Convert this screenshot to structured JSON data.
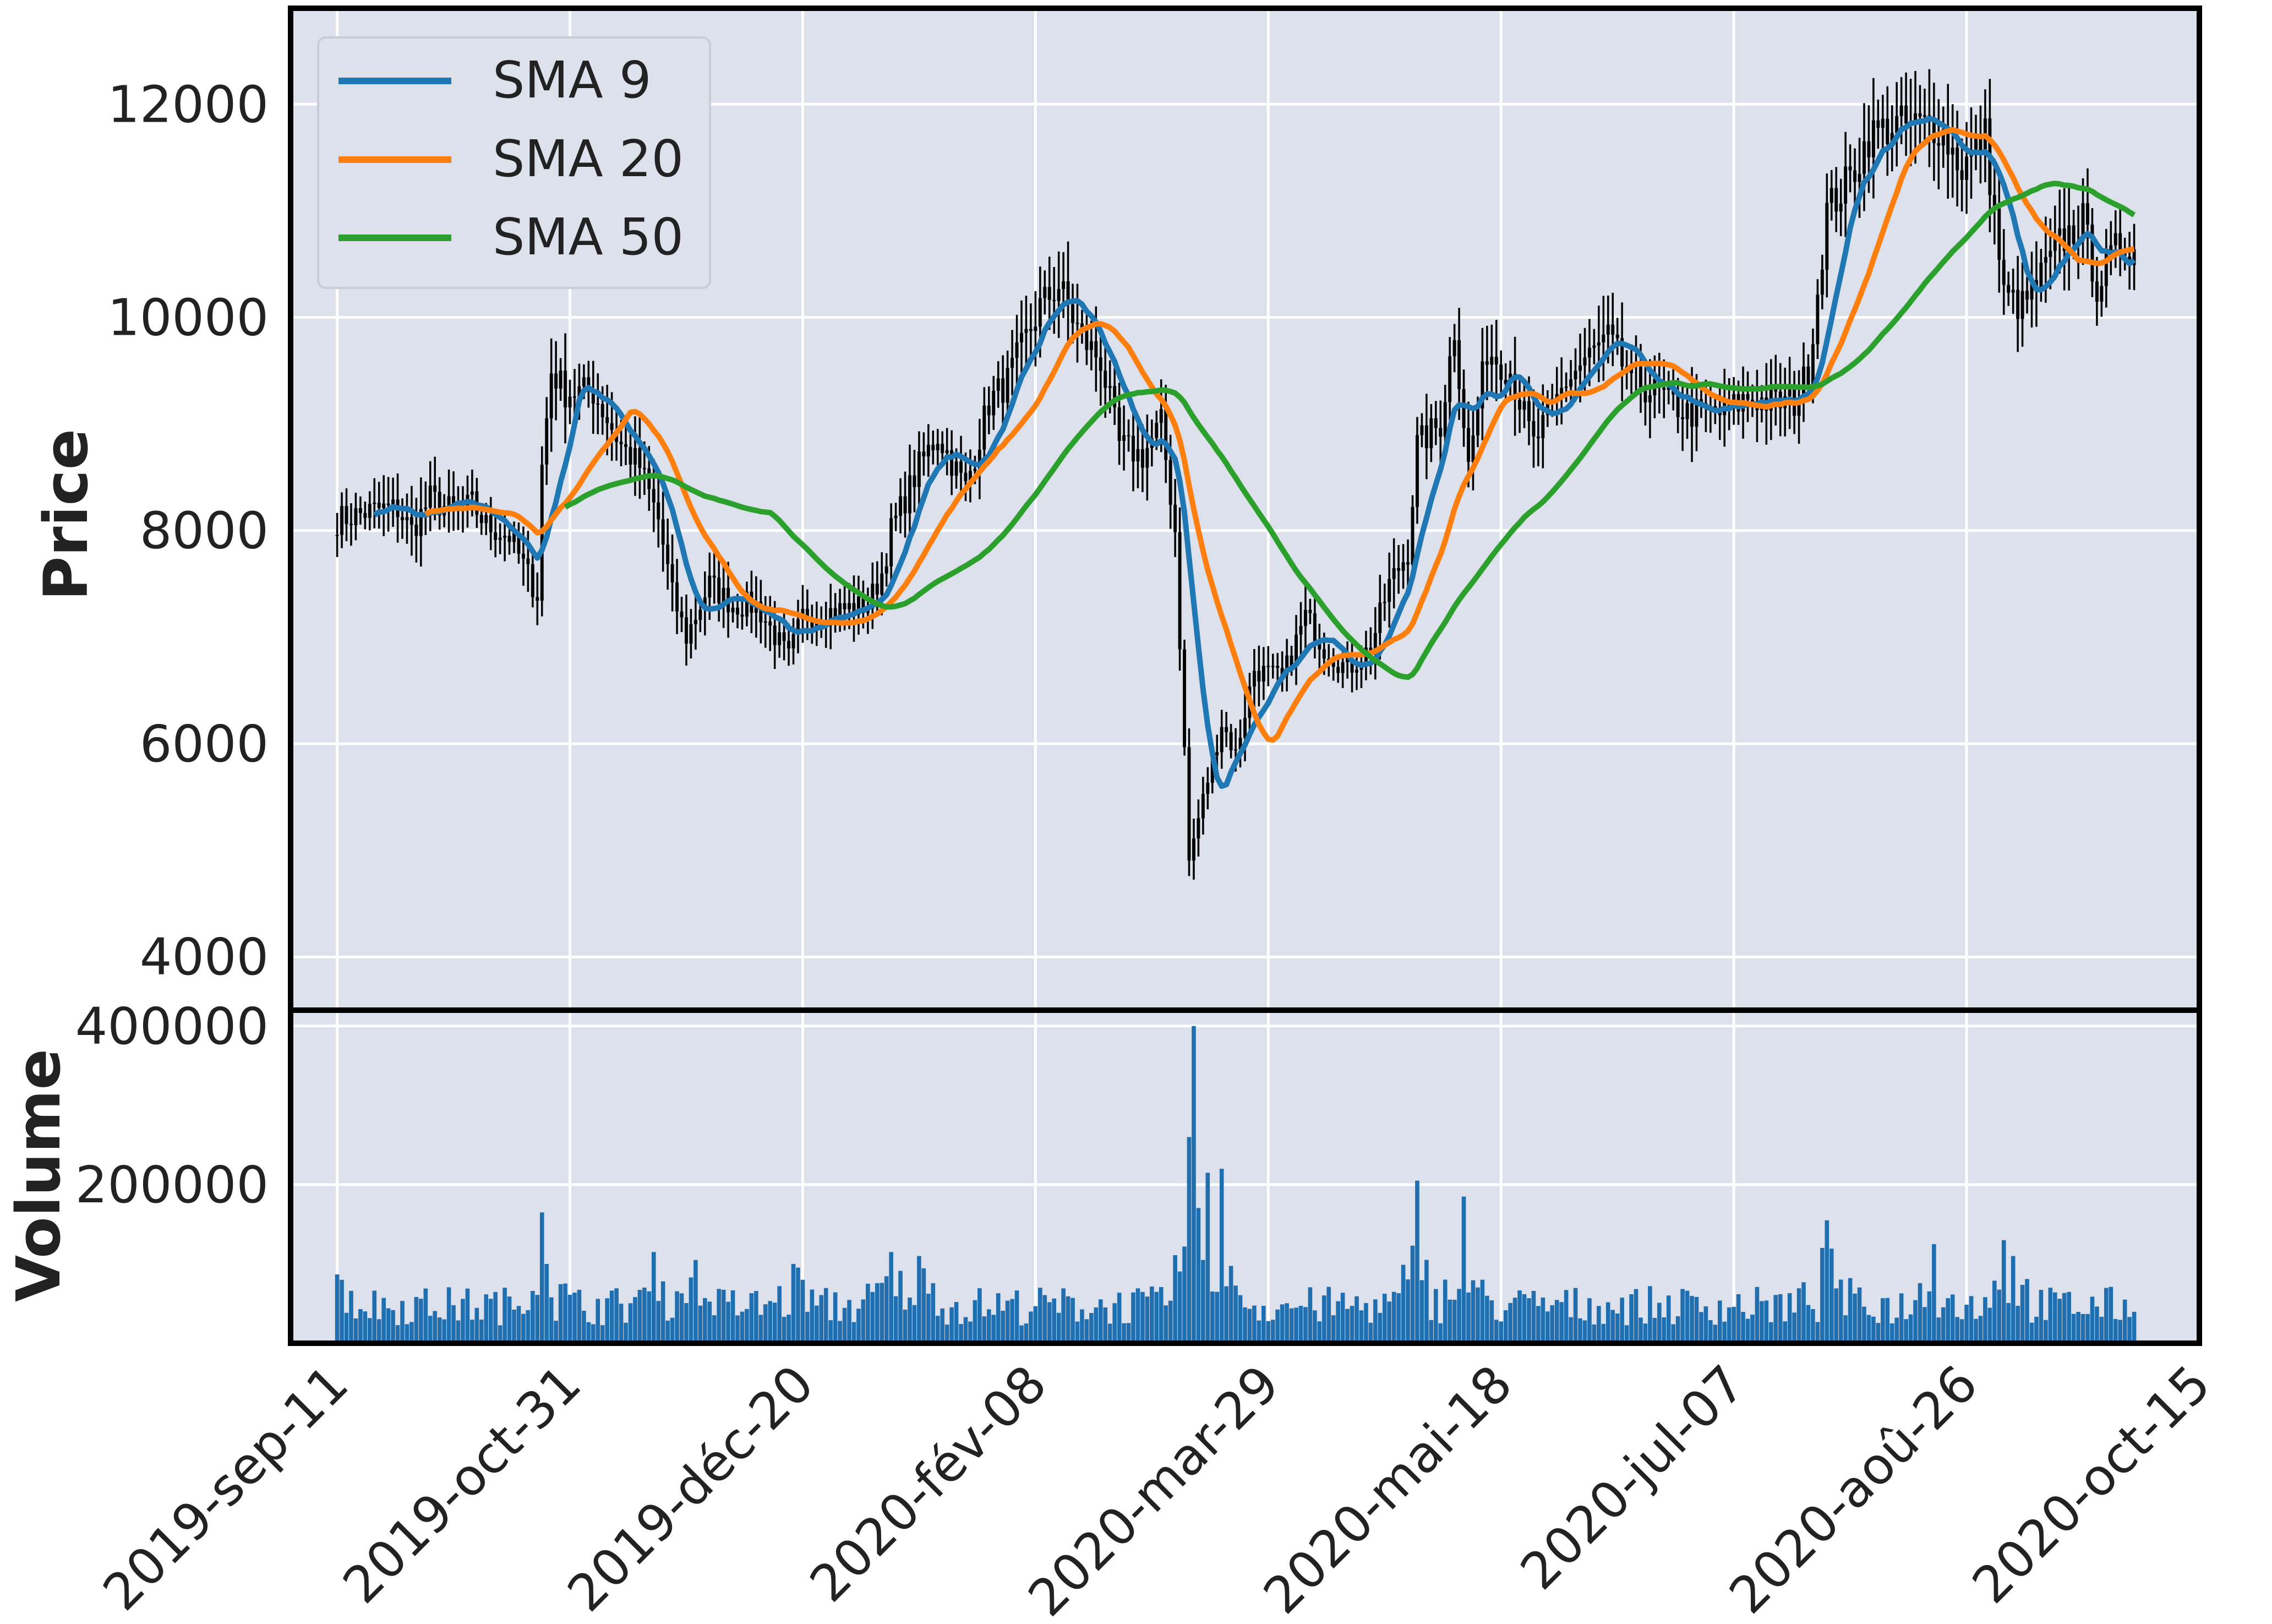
{
  "chart_data": {
    "type": "candlestick",
    "legend_position": "upper-left",
    "grid": true,
    "colors": {
      "background": "#dde1ec",
      "grid": "#ffffff",
      "candle": "#000000",
      "volume": "#1f6fb0",
      "sma9": "#1f77b4",
      "sma20": "#ff7f0e",
      "sma50": "#2ca02c"
    },
    "price_panel": {
      "ylabel": "Price",
      "ylim": [
        3500,
        12900
      ],
      "yticks": [
        4000,
        6000,
        8000,
        10000,
        12000
      ]
    },
    "volume_panel": {
      "ylabel": "Volume",
      "ylim": [
        0,
        420000
      ],
      "yticks": [
        200000,
        400000
      ]
    },
    "x_axis": {
      "range": [
        "2019-09-01",
        "2020-10-15"
      ],
      "ticks": [
        {
          "date": "2019-09-11",
          "label": "2019-sep-11"
        },
        {
          "date": "2019-10-31",
          "label": "2019-oct-31"
        },
        {
          "date": "2019-12-20",
          "label": "2019-déc-20"
        },
        {
          "date": "2020-02-08",
          "label": "2020-fév-08"
        },
        {
          "date": "2020-03-29",
          "label": "2020-mar-29"
        },
        {
          "date": "2020-05-18",
          "label": "2020-mai-18"
        },
        {
          "date": "2020-07-07",
          "label": "2020-jul-07"
        },
        {
          "date": "2020-08-26",
          "label": "2020-aoû-26"
        },
        {
          "date": "2020-10-15",
          "label": "2020-oct-15"
        }
      ]
    },
    "data_start": "2019-09-11",
    "data_end": "2020-10-01",
    "price_anchors": [
      [
        "2019-09-11",
        8100
      ],
      [
        "2019-09-20",
        8200
      ],
      [
        "2019-09-24",
        8200
      ],
      [
        "2019-09-27",
        8000
      ],
      [
        "2019-10-01",
        8300
      ],
      [
        "2019-10-07",
        8150
      ],
      [
        "2019-10-10",
        8250
      ],
      [
        "2019-10-13",
        8050
      ],
      [
        "2019-10-18",
        7950
      ],
      [
        "2019-10-24",
        7400
      ],
      [
        "2019-10-25",
        8600
      ],
      [
        "2019-10-27",
        9500
      ],
      [
        "2019-10-30",
        9300
      ],
      [
        "2019-11-05",
        9300
      ],
      [
        "2019-11-11",
        8800
      ],
      [
        "2019-11-15",
        8600
      ],
      [
        "2019-11-19",
        8100
      ],
      [
        "2019-11-22",
        7400
      ],
      [
        "2019-11-25",
        7000
      ],
      [
        "2019-11-30",
        7500
      ],
      [
        "2019-12-05",
        7300
      ],
      [
        "2019-12-10",
        7300
      ],
      [
        "2019-12-17",
        6800
      ],
      [
        "2019-12-20",
        7200
      ],
      [
        "2019-12-27",
        7250
      ],
      [
        "2020-01-03",
        7300
      ],
      [
        "2020-01-06",
        7600
      ],
      [
        "2020-01-08",
        8000
      ],
      [
        "2020-01-14",
        8600
      ],
      [
        "2020-01-18",
        8900
      ],
      [
        "2020-01-24",
        8400
      ],
      [
        "2020-01-29",
        9200
      ],
      [
        "2020-02-02",
        9400
      ],
      [
        "2020-02-09",
        10100
      ],
      [
        "2020-02-13",
        10300
      ],
      [
        "2020-02-18",
        9800
      ],
      [
        "2020-02-22",
        9600
      ],
      [
        "2020-02-26",
        8800
      ],
      [
        "2020-03-02",
        8700
      ],
      [
        "2020-03-06",
        9000
      ],
      [
        "2020-03-09",
        8000
      ],
      [
        "2020-03-12",
        4900
      ],
      [
        "2020-03-14",
        5300
      ],
      [
        "2020-03-19",
        6200
      ],
      [
        "2020-03-22",
        5900
      ],
      [
        "2020-03-26",
        6700
      ],
      [
        "2020-04-01",
        6600
      ],
      [
        "2020-04-06",
        7200
      ],
      [
        "2020-04-10",
        6900
      ],
      [
        "2020-04-15",
        6700
      ],
      [
        "2020-04-20",
        6900
      ],
      [
        "2020-04-24",
        7500
      ],
      [
        "2020-04-28",
        7800
      ],
      [
        "2020-04-30",
        8800
      ],
      [
        "2020-05-05",
        9000
      ],
      [
        "2020-05-08",
        9900
      ],
      [
        "2020-05-11",
        8600
      ],
      [
        "2020-05-15",
        9700
      ],
      [
        "2020-05-20",
        9500
      ],
      [
        "2020-05-25",
        8800
      ],
      [
        "2020-06-01",
        9400
      ],
      [
        "2020-06-05",
        9600
      ],
      [
        "2020-06-10",
        9800
      ],
      [
        "2020-06-15",
        9400
      ],
      [
        "2020-06-20",
        9300
      ],
      [
        "2020-06-27",
        9100
      ],
      [
        "2020-07-05",
        9100
      ],
      [
        "2020-07-10",
        9250
      ],
      [
        "2020-07-15",
        9200
      ],
      [
        "2020-07-20",
        9200
      ],
      [
        "2020-07-23",
        9500
      ],
      [
        "2020-07-27",
        11000
      ],
      [
        "2020-08-01",
        11300
      ],
      [
        "2020-08-05",
        11700
      ],
      [
        "2020-08-10",
        11800
      ],
      [
        "2020-08-16",
        11800
      ],
      [
        "2020-08-20",
        11800
      ],
      [
        "2020-08-25",
        11400
      ],
      [
        "2020-08-30",
        11700
      ],
      [
        "2020-09-03",
        10200
      ],
      [
        "2020-09-07",
        10100
      ],
      [
        "2020-09-10",
        10300
      ],
      [
        "2020-09-15",
        10700
      ],
      [
        "2020-09-20",
        10900
      ],
      [
        "2020-09-23",
        10300
      ],
      [
        "2020-09-28",
        10700
      ],
      [
        "2020-10-01",
        10650
      ]
    ],
    "sma_windows": [
      9,
      20,
      50
    ],
    "volume_spikes": [
      [
        "2019-09-12",
        80000
      ],
      [
        "2019-10-25",
        165000
      ],
      [
        "2019-10-26",
        100000
      ],
      [
        "2019-11-18",
        115000
      ],
      [
        "2019-11-27",
        105000
      ],
      [
        "2019-12-18",
        100000
      ],
      [
        "2020-01-08",
        115000
      ],
      [
        "2020-01-14",
        110000
      ],
      [
        "2020-03-12",
        260000
      ],
      [
        "2020-03-13",
        400000
      ],
      [
        "2020-03-16",
        215000
      ],
      [
        "2020-03-19",
        220000
      ],
      [
        "2020-04-30",
        205000
      ],
      [
        "2020-05-10",
        185000
      ],
      [
        "2020-07-27",
        155000
      ],
      [
        "2020-08-19",
        125000
      ],
      [
        "2020-09-03",
        130000
      ],
      [
        "2020-09-05",
        110000
      ]
    ],
    "volume_baseline": 45000,
    "series": [
      {
        "name": "SMA 9"
      },
      {
        "name": "SMA 20"
      },
      {
        "name": "SMA 50"
      }
    ]
  }
}
